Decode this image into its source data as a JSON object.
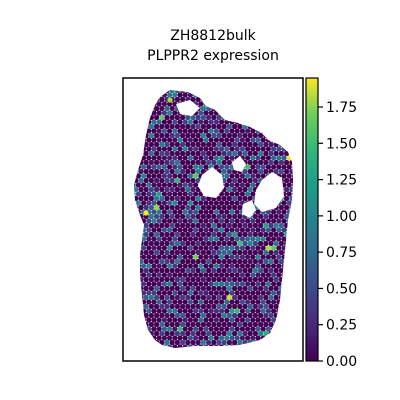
{
  "chart_data": {
    "type": "scatter",
    "title": "ZH8812bulk",
    "subtitle": "PLPPR2 expression",
    "xlabel": "",
    "ylabel": "",
    "grid": false,
    "colormap": "viridis",
    "colorbar": {
      "vmin": 0.0,
      "vmax": 1.95,
      "ticks": [
        0.0,
        0.25,
        0.5,
        0.75,
        1.0,
        1.25,
        1.5,
        1.75
      ],
      "tick_labels": [
        "0.00",
        "0.25",
        "0.50",
        "0.75",
        "1.00",
        "1.25",
        "1.50",
        "1.75"
      ]
    },
    "distribution": {
      "zero_fraction": 0.55,
      "low_max": 0.6,
      "mid_max": 1.0,
      "high_max": 1.95
    }
  }
}
